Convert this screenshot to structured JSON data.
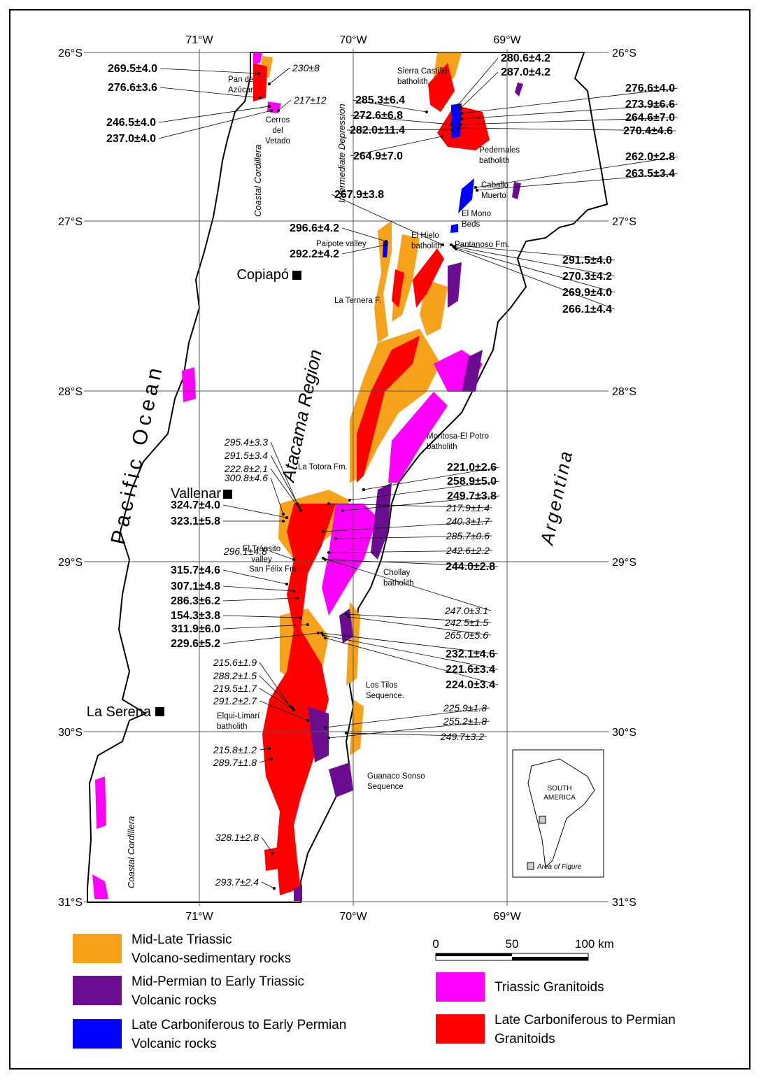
{
  "grid": {
    "longitudes": [
      "71°W",
      "70°W",
      "69°W"
    ],
    "latitudes": [
      "26°S",
      "27°S",
      "28°S",
      "29°S",
      "30°S",
      "31°S"
    ]
  },
  "places": [
    "Copiapó",
    "Vallenar",
    "La Serena"
  ],
  "regions": [
    "Pacific Ocean",
    "Atacama Region",
    "Argentina",
    "Coastal Cordillera",
    "Coastal Cordillera",
    "Intermediate Depression"
  ],
  "features": [
    [
      "Pan de",
      "Azúcar"
    ],
    [
      "Cerros",
      "del",
      "Vetado"
    ],
    [
      "Sierra Castillo",
      "batholith"
    ],
    [
      "Pedernales",
      "batholith"
    ],
    [
      "Caballo",
      "Muerto"
    ],
    [
      "El Mono",
      "Beds"
    ],
    [
      "Paipote valley"
    ],
    [
      "El Hielo",
      "batholith"
    ],
    [
      "Pantanoso Fm."
    ],
    [
      "La Ternera F."
    ],
    [
      "Montosa-El Potro",
      "batholith"
    ],
    [
      "La Totora Fm."
    ],
    [
      "El Tránsito",
      "valley"
    ],
    [
      "San Félix Fm."
    ],
    [
      "Chollay",
      "batholith"
    ],
    [
      "Los Tilos",
      "Sequence."
    ],
    [
      "Elqui-Limarí",
      "batholith"
    ],
    [
      "Guanaco Sonso",
      "Sequence"
    ]
  ],
  "ages_bold": [
    "269.5±4.0",
    "276.6±3.6",
    "246.5±4.0",
    "237.0±4.0",
    "280.6±4.2",
    "287.0±4.2",
    "285.3±6.4",
    "272.6±6.8",
    "282.0±11.4",
    "264.9±7.0",
    "276.6±4.0",
    "273.9±6.6",
    "264.6±7.0",
    "270.4±4.6",
    "262.0±2.8",
    "263.5±3.4",
    "267.9±3.8",
    "296.6±4.2",
    "292.2±4.2",
    "291.5±4.0",
    "270.3±4.2",
    "269.9±4.0",
    "266.1±4.4",
    "221.0±2.6",
    "258.9±5.0",
    "249.7±3.8",
    "324.7±4.0",
    "323.1±5.8",
    "244.0±2.8",
    "315.7±4.6",
    "307.1±4.8",
    "286.3±6.2",
    "154.3±3.8",
    "311.9±6.0",
    "229.6±5.2",
    "232.1±4.6",
    "221.6±3.4",
    "224.0±3.4"
  ],
  "ages_italic": [
    "230±8",
    "217±12",
    "295.4±3.3",
    "291.5±3.4",
    "222.8±2.1",
    "300.8±4.6",
    "217.9±1.4",
    "240.3±1.7",
    "285.7±0.6",
    "296.1±4.8",
    "242.6±2.2",
    "247.0±3.1",
    "242.5±1.5",
    "265.0±5.6",
    "215.6±1.9",
    "288.2±1.5",
    "219.5±1.7",
    "291.2±2.7",
    "225.9±1.8",
    "255.2±1.8",
    "249.7±3.2",
    "215.8±1.2",
    "289.7±1.8",
    "328.1±2.8",
    "293.7±2.4"
  ],
  "inset": {
    "lines": [
      "SOUTH",
      "AMERICA"
    ],
    "caption": "Area of Figure"
  },
  "scale": {
    "labels": [
      "0",
      "50",
      "100 km"
    ]
  },
  "legend": [
    {
      "lines": [
        "Mid-Late Triassic",
        "Volcano-sedimentary rocks"
      ],
      "color": "#f7a21b"
    },
    {
      "lines": [
        "Mid-Permian to Early Triassic",
        "Volcanic rocks"
      ],
      "color": "#6a0d91"
    },
    {
      "lines": [
        "Late Carboniferous to Early Permian",
        "Volcanic rocks"
      ],
      "color": "#0000ff"
    },
    {
      "lines": [
        "Triassic Granitoids"
      ],
      "color": "#ff00ff"
    },
    {
      "lines": [
        "Late Carboniferous to Permian",
        "Granitoids"
      ],
      "color": "#ff0000"
    }
  ]
}
